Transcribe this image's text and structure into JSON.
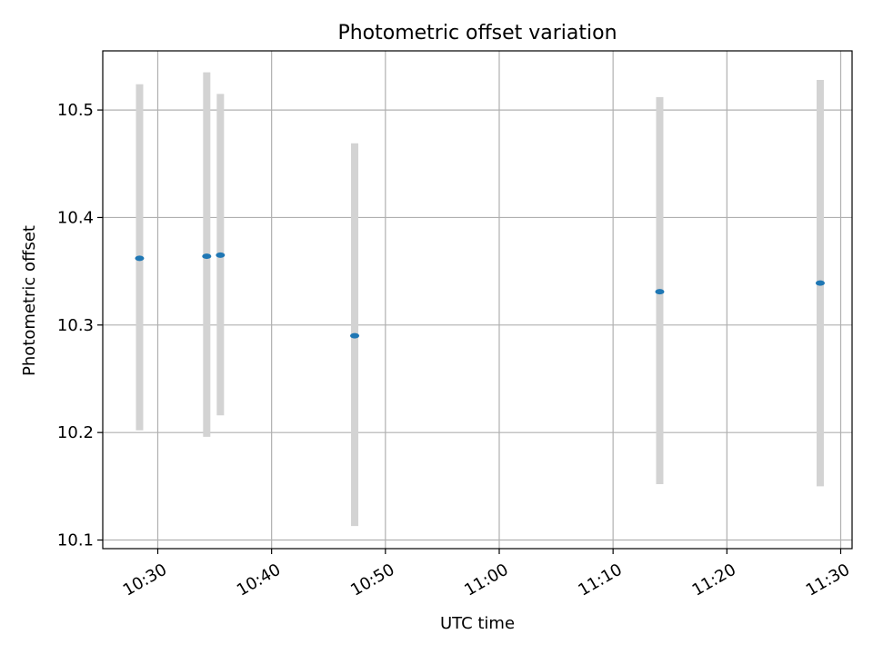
{
  "chart_data": {
    "type": "scatter",
    "title": "Photometric offset variation",
    "xlabel": "UTC time",
    "ylabel": "Photometric offset",
    "x_ticks": [
      "10:30",
      "10:40",
      "10:50",
      "11:00",
      "11:10",
      "11:20",
      "11:30"
    ],
    "y_ticks": [
      "10.1",
      "10.2",
      "10.3",
      "10.4",
      "10.5"
    ],
    "xlim": [
      "10:25:10",
      "11:31:00"
    ],
    "ylim": [
      10.092,
      10.555
    ],
    "grid": true,
    "points": [
      {
        "time": "10:28:24",
        "y": 10.362,
        "err_low": 10.202,
        "err_high": 10.524
      },
      {
        "time": "10:34:18",
        "y": 10.364,
        "err_low": 10.196,
        "err_high": 10.535
      },
      {
        "time": "10:35:30",
        "y": 10.365,
        "err_low": 10.216,
        "err_high": 10.515
      },
      {
        "time": "10:47:18",
        "y": 10.29,
        "err_low": 10.113,
        "err_high": 10.469
      },
      {
        "time": "11:14:06",
        "y": 10.331,
        "err_low": 10.152,
        "err_high": 10.512
      },
      {
        "time": "11:28:12",
        "y": 10.339,
        "err_low": 10.15,
        "err_high": 10.528
      }
    ],
    "colors": {
      "point": "#1f77b4",
      "errorbar": "#d3d3d3",
      "grid": "#b0b0b0",
      "axis": "#000000"
    }
  }
}
